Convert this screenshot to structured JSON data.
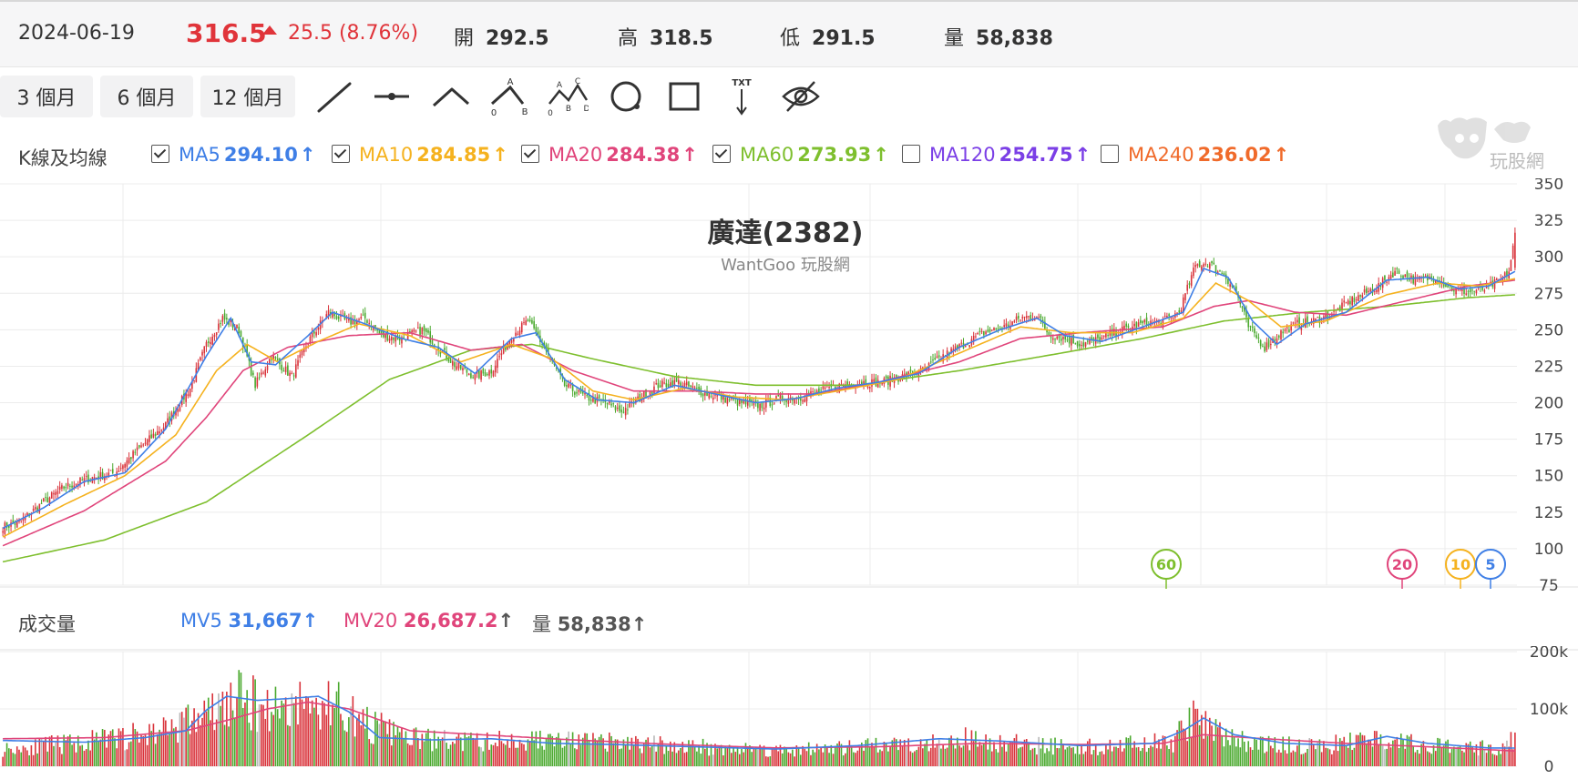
{
  "quote": {
    "date": "2024-06-19",
    "price": "316.5",
    "change": "25.5 (8.76%)",
    "open_label": "開",
    "open": "292.5",
    "high_label": "高",
    "high": "318.5",
    "low_label": "低",
    "low": "291.5",
    "volume_label": "量",
    "volume": "58,838"
  },
  "toolbar": {
    "ranges": [
      "3 個月",
      "6 個月",
      "12 個月"
    ],
    "tools": [
      "line-tool-icon",
      "horizontal-line-tool-icon",
      "polyline-tool-icon",
      "abc-pattern-tool-icon",
      "abcd-pattern-tool-icon",
      "circle-tool-icon",
      "rectangle-tool-icon",
      "text-arrow-tool-icon",
      "hide-drawings-icon"
    ],
    "abc_labels": [
      "A",
      "0",
      "B"
    ],
    "abcd_labels": [
      "A",
      "C",
      "0",
      "B",
      "D"
    ],
    "txt_label": "TXT"
  },
  "ma_legend": {
    "title": "K線及均線",
    "items": [
      {
        "label": "MA5",
        "value": "294.10",
        "checked": true,
        "color": "#3f7fe6"
      },
      {
        "label": "MA10",
        "value": "284.85",
        "checked": true,
        "color": "#f5b21f"
      },
      {
        "label": "MA20",
        "value": "284.38",
        "checked": true,
        "color": "#e0457b"
      },
      {
        "label": "MA60",
        "value": "273.93",
        "checked": true,
        "color": "#7ebf2e"
      },
      {
        "label": "MA120",
        "value": "254.75",
        "checked": false,
        "color": "#7b3fe6"
      },
      {
        "label": "MA240",
        "value": "236.02",
        "checked": false,
        "color": "#f06a2a"
      }
    ],
    "arrow": "↑"
  },
  "watermark_text": "玩股網",
  "chart_title": "廣達(2382)",
  "chart_subtitle": "WantGoo 玩股網",
  "vol_legend": {
    "title": "成交量",
    "mv5_label": "MV5",
    "mv5": "31,667",
    "mv20_label": "MV20",
    "mv20": "26,687.2",
    "vol_label": "量",
    "vol": "58,838",
    "arrow": "↑"
  },
  "chart_data": [
    {
      "type": "candlestick",
      "title": "廣達(2382)",
      "subtitle": "WantGoo 玩股網",
      "ylim": [
        75,
        350
      ],
      "yticks": [
        "75",
        "100",
        "125",
        "150",
        "175",
        "200",
        "225",
        "250",
        "275",
        "300",
        "325",
        "350"
      ],
      "grid": true,
      "close_anchors": [
        [
          0,
          115
        ],
        [
          8,
          118
        ],
        [
          20,
          132
        ],
        [
          30,
          142
        ],
        [
          42,
          148
        ],
        [
          55,
          152
        ],
        [
          68,
          170
        ],
        [
          80,
          185
        ],
        [
          92,
          210
        ],
        [
          100,
          240
        ],
        [
          108,
          258
        ],
        [
          116,
          250
        ],
        [
          124,
          212
        ],
        [
          132,
          232
        ],
        [
          142,
          218
        ],
        [
          150,
          242
        ],
        [
          160,
          262
        ],
        [
          170,
          255
        ],
        [
          178,
          258
        ],
        [
          186,
          246
        ],
        [
          196,
          244
        ],
        [
          206,
          250
        ],
        [
          214,
          238
        ],
        [
          222,
          226
        ],
        [
          232,
          218
        ],
        [
          240,
          222
        ],
        [
          250,
          246
        ],
        [
          258,
          256
        ],
        [
          266,
          238
        ],
        [
          276,
          212
        ],
        [
          286,
          204
        ],
        [
          296,
          200
        ],
        [
          304,
          194
        ],
        [
          312,
          202
        ],
        [
          322,
          212
        ],
        [
          332,
          214
        ],
        [
          342,
          208
        ],
        [
          352,
          204
        ],
        [
          362,
          200
        ],
        [
          372,
          198
        ],
        [
          382,
          203
        ],
        [
          392,
          204
        ],
        [
          402,
          208
        ],
        [
          412,
          212
        ],
        [
          422,
          214
        ],
        [
          432,
          214
        ],
        [
          442,
          218
        ],
        [
          452,
          222
        ],
        [
          462,
          232
        ],
        [
          472,
          240
        ],
        [
          482,
          248
        ],
        [
          492,
          252
        ],
        [
          500,
          258
        ],
        [
          508,
          260
        ],
        [
          514,
          247
        ],
        [
          522,
          244
        ],
        [
          530,
          240
        ],
        [
          540,
          244
        ],
        [
          550,
          250
        ],
        [
          560,
          254
        ],
        [
          570,
          256
        ],
        [
          578,
          262
        ],
        [
          586,
          294
        ],
        [
          592,
          296
        ],
        [
          600,
          288
        ],
        [
          606,
          276
        ],
        [
          612,
          252
        ],
        [
          620,
          238
        ],
        [
          628,
          248
        ],
        [
          636,
          254
        ],
        [
          644,
          256
        ],
        [
          652,
          260
        ],
        [
          660,
          268
        ],
        [
          668,
          274
        ],
        [
          676,
          280
        ],
        [
          684,
          290
        ],
        [
          694,
          284
        ],
        [
          704,
          286
        ],
        [
          712,
          278
        ],
        [
          720,
          276
        ],
        [
          728,
          278
        ],
        [
          736,
          284
        ],
        [
          740,
          290
        ],
        [
          743,
          314
        ]
      ],
      "ma5_anchors": [
        [
          0,
          114
        ],
        [
          20,
          128
        ],
        [
          40,
          146
        ],
        [
          60,
          152
        ],
        [
          80,
          182
        ],
        [
          100,
          232
        ],
        [
          112,
          258
        ],
        [
          122,
          228
        ],
        [
          134,
          226
        ],
        [
          150,
          246
        ],
        [
          162,
          262
        ],
        [
          178,
          254
        ],
        [
          196,
          244
        ],
        [
          214,
          238
        ],
        [
          232,
          220
        ],
        [
          250,
          244
        ],
        [
          262,
          248
        ],
        [
          276,
          216
        ],
        [
          292,
          202
        ],
        [
          310,
          200
        ],
        [
          330,
          212
        ],
        [
          350,
          206
        ],
        [
          370,
          200
        ],
        [
          390,
          203
        ],
        [
          410,
          210
        ],
        [
          430,
          214
        ],
        [
          450,
          220
        ],
        [
          470,
          238
        ],
        [
          490,
          250
        ],
        [
          508,
          258
        ],
        [
          522,
          246
        ],
        [
          540,
          242
        ],
        [
          560,
          252
        ],
        [
          580,
          262
        ],
        [
          590,
          292
        ],
        [
          602,
          286
        ],
        [
          614,
          256
        ],
        [
          626,
          240
        ],
        [
          640,
          254
        ],
        [
          660,
          262
        ],
        [
          680,
          284
        ],
        [
          700,
          286
        ],
        [
          716,
          278
        ],
        [
          730,
          280
        ],
        [
          743,
          290
        ]
      ],
      "ma10_anchors": [
        [
          0,
          108
        ],
        [
          30,
          130
        ],
        [
          60,
          150
        ],
        [
          85,
          178
        ],
        [
          105,
          222
        ],
        [
          120,
          240
        ],
        [
          135,
          228
        ],
        [
          155,
          242
        ],
        [
          175,
          254
        ],
        [
          200,
          246
        ],
        [
          225,
          228
        ],
        [
          250,
          240
        ],
        [
          270,
          230
        ],
        [
          290,
          208
        ],
        [
          310,
          202
        ],
        [
          335,
          210
        ],
        [
          360,
          204
        ],
        [
          385,
          202
        ],
        [
          410,
          208
        ],
        [
          440,
          216
        ],
        [
          470,
          234
        ],
        [
          500,
          252
        ],
        [
          525,
          248
        ],
        [
          555,
          248
        ],
        [
          580,
          258
        ],
        [
          596,
          282
        ],
        [
          612,
          270
        ],
        [
          628,
          252
        ],
        [
          650,
          256
        ],
        [
          680,
          274
        ],
        [
          705,
          282
        ],
        [
          725,
          280
        ],
        [
          743,
          285
        ]
      ],
      "ma20_anchors": [
        [
          0,
          102
        ],
        [
          40,
          126
        ],
        [
          80,
          160
        ],
        [
          100,
          190
        ],
        [
          118,
          222
        ],
        [
          140,
          238
        ],
        [
          170,
          246
        ],
        [
          200,
          248
        ],
        [
          230,
          236
        ],
        [
          255,
          240
        ],
        [
          280,
          222
        ],
        [
          310,
          208
        ],
        [
          340,
          208
        ],
        [
          370,
          206
        ],
        [
          400,
          206
        ],
        [
          430,
          214
        ],
        [
          470,
          228
        ],
        [
          500,
          244
        ],
        [
          530,
          248
        ],
        [
          570,
          252
        ],
        [
          595,
          266
        ],
        [
          612,
          270
        ],
        [
          635,
          262
        ],
        [
          660,
          260
        ],
        [
          690,
          270
        ],
        [
          720,
          280
        ],
        [
          743,
          284
        ]
      ],
      "ma60_anchors": [
        [
          0,
          91
        ],
        [
          50,
          106
        ],
        [
          100,
          132
        ],
        [
          150,
          178
        ],
        [
          190,
          216
        ],
        [
          230,
          236
        ],
        [
          260,
          240
        ],
        [
          290,
          230
        ],
        [
          330,
          218
        ],
        [
          370,
          212
        ],
        [
          420,
          212
        ],
        [
          470,
          222
        ],
        [
          520,
          234
        ],
        [
          560,
          244
        ],
        [
          600,
          256
        ],
        [
          640,
          262
        ],
        [
          680,
          266
        ],
        [
          720,
          272
        ],
        [
          743,
          274
        ]
      ],
      "ma_badges": [
        "60",
        "20",
        "10",
        "5"
      ]
    },
    {
      "type": "bar",
      "title": "成交量",
      "ylim": [
        0,
        200000
      ],
      "yticks": [
        "0",
        "100k",
        "200k"
      ],
      "grid": true,
      "volume_anchors": [
        [
          0,
          30000
        ],
        [
          40,
          42000
        ],
        [
          70,
          55000
        ],
        [
          90,
          78000
        ],
        [
          105,
          95000
        ],
        [
          115,
          118000
        ],
        [
          125,
          108000
        ],
        [
          135,
          102000
        ],
        [
          145,
          112000
        ],
        [
          155,
          100000
        ],
        [
          165,
          112000
        ],
        [
          175,
          78000
        ],
        [
          200,
          48000
        ],
        [
          230,
          42000
        ],
        [
          260,
          46000
        ],
        [
          290,
          42000
        ],
        [
          330,
          36000
        ],
        [
          380,
          28000
        ],
        [
          420,
          32000
        ],
        [
          450,
          42000
        ],
        [
          470,
          48000
        ],
        [
          500,
          38000
        ],
        [
          540,
          34000
        ],
        [
          575,
          42000
        ],
        [
          585,
          85000
        ],
        [
          600,
          52000
        ],
        [
          620,
          38000
        ],
        [
          650,
          34000
        ],
        [
          670,
          50000
        ],
        [
          690,
          40000
        ],
        [
          720,
          30000
        ],
        [
          740,
          36000
        ],
        [
          743,
          58838
        ]
      ],
      "mv5_anchors": [
        [
          0,
          45000
        ],
        [
          40,
          42000
        ],
        [
          70,
          50000
        ],
        [
          90,
          62000
        ],
        [
          100,
          98000
        ],
        [
          110,
          122000
        ],
        [
          125,
          115000
        ],
        [
          140,
          118000
        ],
        [
          155,
          122000
        ],
        [
          170,
          95000
        ],
        [
          185,
          50000
        ],
        [
          210,
          46000
        ],
        [
          240,
          48000
        ],
        [
          270,
          40000
        ],
        [
          300,
          38000
        ],
        [
          340,
          34000
        ],
        [
          380,
          30000
        ],
        [
          420,
          36000
        ],
        [
          460,
          48000
        ],
        [
          490,
          44000
        ],
        [
          530,
          36000
        ],
        [
          565,
          40000
        ],
        [
          580,
          62000
        ],
        [
          590,
          84000
        ],
        [
          605,
          55000
        ],
        [
          630,
          40000
        ],
        [
          660,
          36000
        ],
        [
          680,
          52000
        ],
        [
          700,
          40000
        ],
        [
          730,
          32000
        ],
        [
          743,
          31667
        ]
      ],
      "mv20_anchors": [
        [
          0,
          48000
        ],
        [
          50,
          50000
        ],
        [
          90,
          62000
        ],
        [
          110,
          80000
        ],
        [
          130,
          100000
        ],
        [
          150,
          112000
        ],
        [
          170,
          100000
        ],
        [
          200,
          62000
        ],
        [
          240,
          54000
        ],
        [
          280,
          46000
        ],
        [
          330,
          38000
        ],
        [
          380,
          32000
        ],
        [
          430,
          34000
        ],
        [
          480,
          40000
        ],
        [
          530,
          38000
        ],
        [
          570,
          40000
        ],
        [
          590,
          55000
        ],
        [
          620,
          48000
        ],
        [
          660,
          40000
        ],
        [
          700,
          34000
        ],
        [
          743,
          26687
        ]
      ]
    }
  ]
}
